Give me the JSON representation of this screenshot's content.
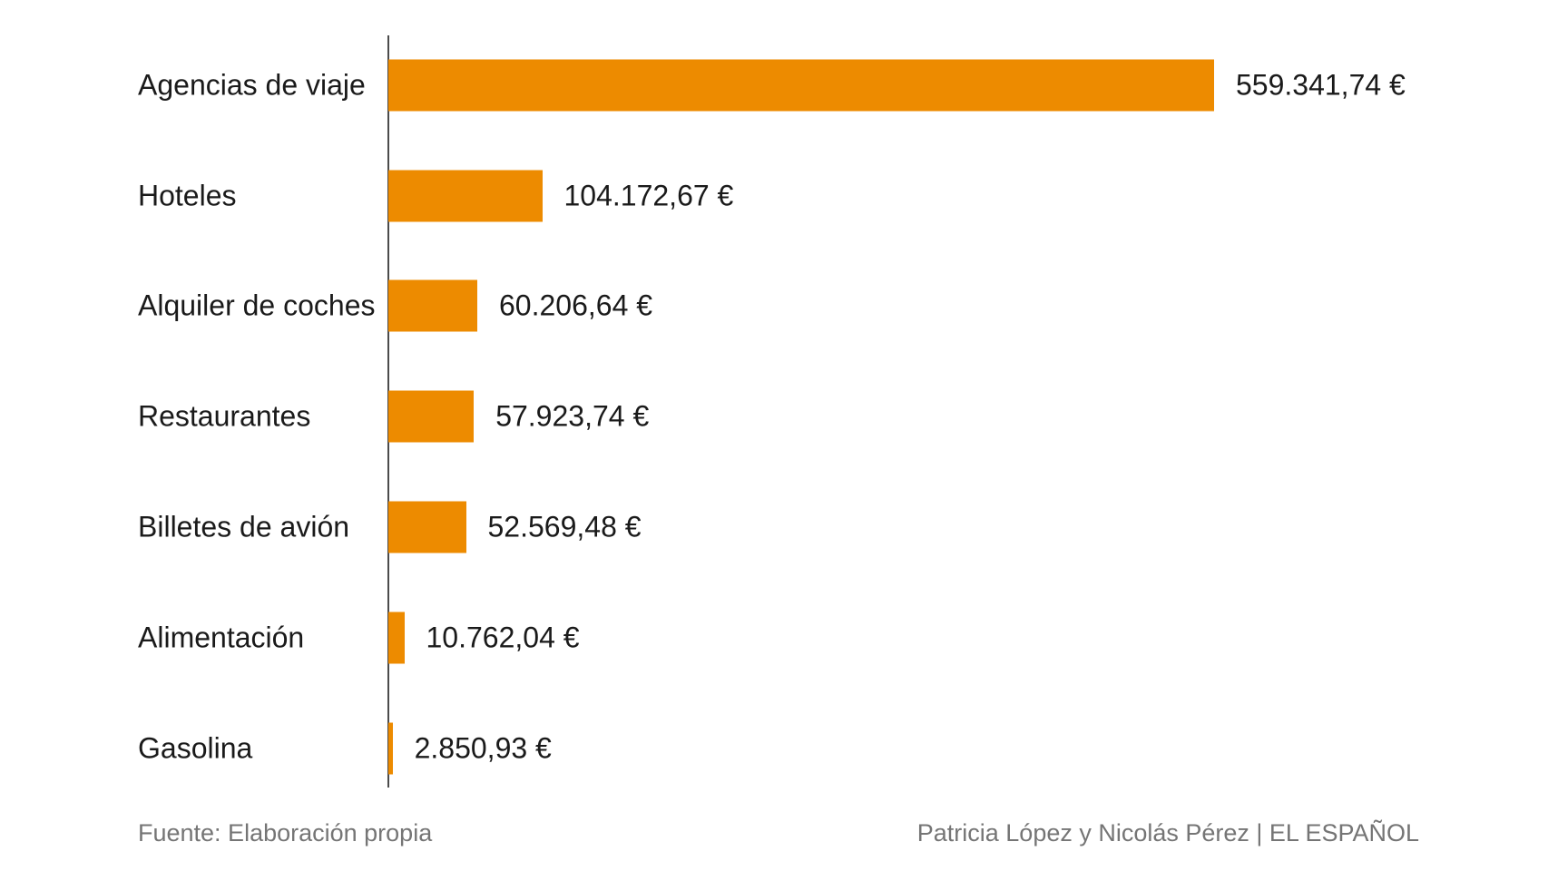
{
  "chart_data": {
    "type": "bar",
    "orientation": "horizontal",
    "title": "",
    "xlabel": "",
    "ylabel": "",
    "grid": false,
    "legend": false,
    "categories": [
      "Agencias de viaje",
      "Hoteles",
      "Alquiler de coches",
      "Restaurantes",
      "Billetes de avión",
      "Alimentación",
      "Gasolina"
    ],
    "values": [
      559341.74,
      104172.67,
      60206.64,
      57923.74,
      52569.48,
      10762.04,
      2850.93
    ],
    "value_labels": [
      "559.341,74 €",
      "104.172,67 €",
      "60.206,64 €",
      "57.923,74 €",
      "52.569,48 €",
      "10.762,04 €",
      "2.850,93 €"
    ],
    "currency": "EUR",
    "xlim": [
      0,
      559341.74
    ],
    "bar_color": "#ED8B00",
    "axis_color": "#4b4b4b",
    "label_color": "#1a1a1a"
  },
  "footer": {
    "source": "Fuente: Elaboración propia",
    "credit": "Patricia López y Nicolás Pérez | EL ESPAÑOL",
    "text_color": "#757575"
  }
}
